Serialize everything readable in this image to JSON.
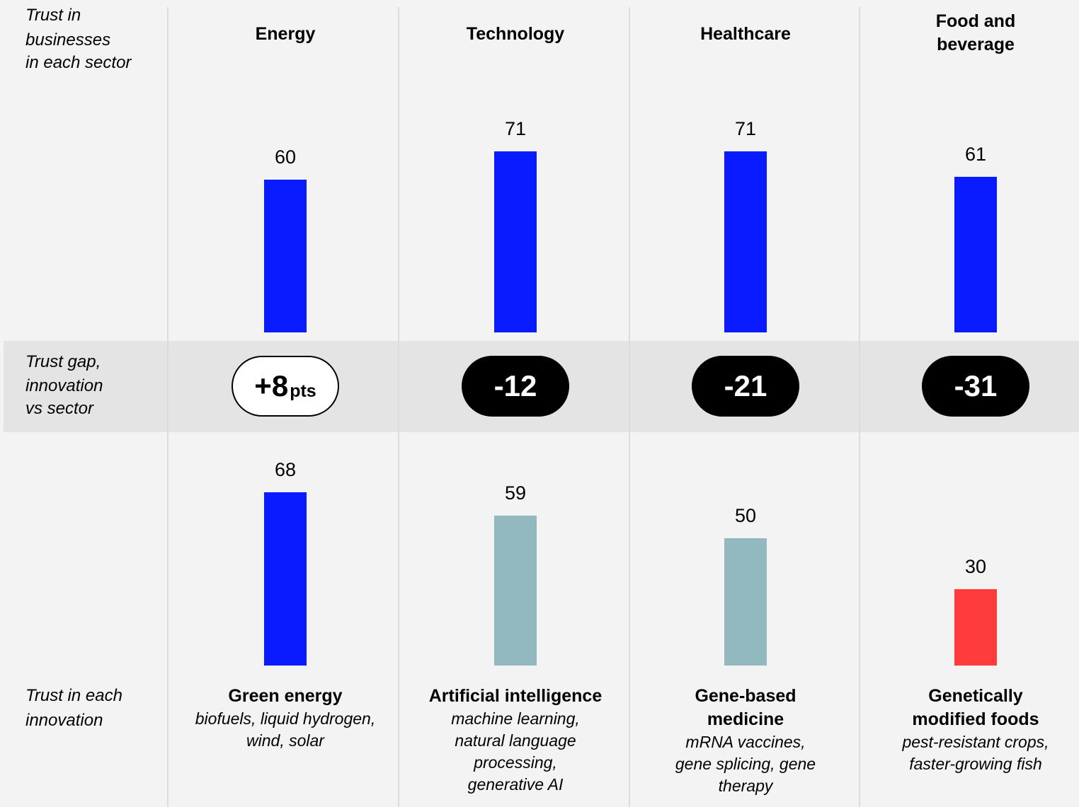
{
  "row_labels": {
    "sector_trust": [
      "Trust in",
      "businesses",
      "in each sector"
    ],
    "gap": [
      "Trust gap,",
      "innovation",
      "vs sector"
    ],
    "innovation_trust": [
      "Trust in each",
      "innovation"
    ]
  },
  "colors": {
    "background": "#f3f3f3",
    "gap_band": "#e4e4e4",
    "sector_bar": "#0a1cff",
    "innovation_high": "#0a1cff",
    "innovation_mid": "#93b9c0",
    "innovation_low": "#ff3c3c",
    "divider": "#dcdcdc"
  },
  "chart_data": {
    "type": "bar",
    "categories": [
      "Energy",
      "Technology",
      "Healthcare",
      "Food and beverage"
    ],
    "category_title_lines": [
      [
        "Energy"
      ],
      [
        "Technology"
      ],
      [
        "Healthcare"
      ],
      [
        "Food and",
        "beverage"
      ]
    ],
    "series": [
      {
        "values": [
          60,
          71,
          71,
          61
        ],
        "colors": [
          "#0a1cff",
          "#0a1cff",
          "#0a1cff",
          "#0a1cff"
        ]
      },
      {
        "values": [
          68,
          59,
          50,
          30
        ],
        "colors": [
          "#0a1cff",
          "#93b9c0",
          "#93b9c0",
          "#ff3c3c"
        ]
      }
    ],
    "trust_gap": [
      {
        "value": "+8",
        "unit": "pts",
        "style": "positive"
      },
      {
        "value": "-12",
        "unit": "",
        "style": "negative"
      },
      {
        "value": "-21",
        "unit": "",
        "style": "negative"
      },
      {
        "value": "-31",
        "unit": "",
        "style": "negative"
      }
    ],
    "innovations": [
      {
        "name_lines": [
          "Green energy"
        ],
        "example_lines": [
          "biofuels, liquid hydrogen,",
          "wind, solar"
        ]
      },
      {
        "name_lines": [
          "Artificial intelligence"
        ],
        "example_lines": [
          "machine learning,",
          "natural language",
          "processing,",
          "generative AI"
        ]
      },
      {
        "name_lines": [
          "Gene-based",
          "medicine"
        ],
        "example_lines": [
          "mRNA vaccines,",
          "gene splicing, gene",
          "therapy"
        ]
      },
      {
        "name_lines": [
          "Genetically",
          "modified foods"
        ],
        "example_lines": [
          "pest-resistant crops,",
          "faster-growing fish"
        ]
      }
    ],
    "ylim": [
      0,
      100
    ],
    "grid": false,
    "legend": "none"
  }
}
